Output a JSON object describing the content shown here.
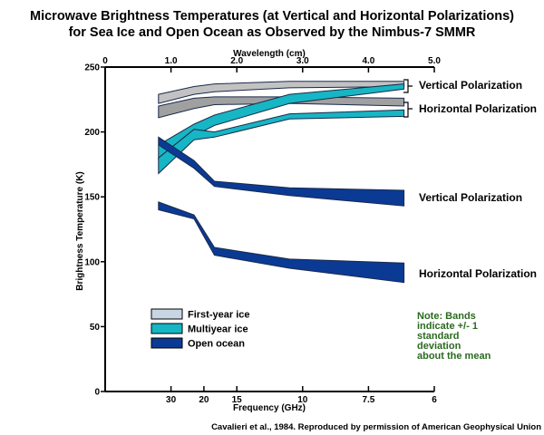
{
  "chart_data": {
    "type": "area",
    "title": [
      "Microwave Brightness Temperatures (at Vertical and Horizontal Polarizations)",
      "for Sea Ice and Open Ocean as Observed by the Nimbus-7 SMMR"
    ],
    "xlabel": "Frequency (GHz)",
    "x2label": "Wavelength (cm)",
    "ylabel": "Brightness Temperature (K)",
    "ylim": [
      0,
      250
    ],
    "xlim_cm": [
      0,
      5
    ],
    "yticks": [
      0,
      50,
      100,
      150,
      200,
      250
    ],
    "top_ticks": [
      {
        "label": "0",
        "cm": 0
      },
      {
        "label": "1.0",
        "cm": 1.0
      },
      {
        "label": "2.0",
        "cm": 2.0
      },
      {
        "label": "3.0",
        "cm": 3.0
      },
      {
        "label": "4.0",
        "cm": 4.0
      },
      {
        "label": "5.0",
        "cm": 5.0
      }
    ],
    "bottom_ticks": [
      {
        "label": "30",
        "cm": 1.0
      },
      {
        "label": "20",
        "cm": 1.5
      },
      {
        "label": "15",
        "cm": 2.0
      },
      {
        "label": "10",
        "cm": 3.0
      },
      {
        "label": "7.5",
        "cm": 4.0
      },
      {
        "label": "6",
        "cm": 5.0
      }
    ],
    "wavelength_cm": [
      0.81,
      1.35,
      1.66,
      2.8,
      4.54
    ],
    "series": [
      {
        "name": "First-year ice",
        "color": "#c2c2c2",
        "polarization": "V",
        "upper": [
          229,
          235,
          237,
          239,
          239
        ],
        "lower": [
          222,
          229,
          231,
          234,
          235
        ]
      },
      {
        "name": "First-year ice",
        "color": "#a0a0a0",
        "polarization": "H",
        "upper": [
          220,
          226,
          227,
          227,
          226
        ],
        "lower": [
          211,
          218,
          221,
          222,
          220
        ]
      },
      {
        "name": "Multiyear ice",
        "color": "#17b6c4",
        "polarization": "V",
        "upper": [
          190,
          206,
          213,
          229,
          237
        ],
        "lower": [
          179,
          197,
          205,
          222,
          233
        ]
      },
      {
        "name": "Multiyear ice",
        "color": "#17b6c4",
        "polarization": "H",
        "upper": [
          180,
          202,
          200,
          214,
          217
        ],
        "lower": [
          168,
          194,
          196,
          210,
          212
        ]
      },
      {
        "name": "Open ocean",
        "color": "#0a3a94",
        "polarization": "V",
        "upper": [
          196,
          178,
          162,
          157,
          155
        ],
        "lower": [
          190,
          172,
          158,
          151,
          143
        ]
      },
      {
        "name": "Open ocean",
        "color": "#0a3a94",
        "polarization": "H",
        "upper": [
          146,
          136,
          111,
          102,
          99
        ],
        "lower": [
          140,
          133,
          105,
          95,
          84
        ]
      }
    ],
    "legend": [
      {
        "label": "First-year ice",
        "color": "#c8d6e4"
      },
      {
        "label": "Multiyear ice",
        "color": "#17b6c4"
      },
      {
        "label": "Open ocean",
        "color": "#0a3a94"
      }
    ],
    "annotations": {
      "ice_vertical": "Vertical Polarization",
      "ice_horizontal": "Horizontal Polarization",
      "ocean_vertical": "Vertical Polarization",
      "ocean_horizontal": "Horizontal Polarization",
      "note": [
        "Note: Bands",
        "indicate +/- 1",
        "standard",
        "deviation",
        "about the mean"
      ]
    },
    "credit": "Cavalieri et al., 1984. Reproduced by permission of American Geophysical Union",
    "grid": false
  }
}
